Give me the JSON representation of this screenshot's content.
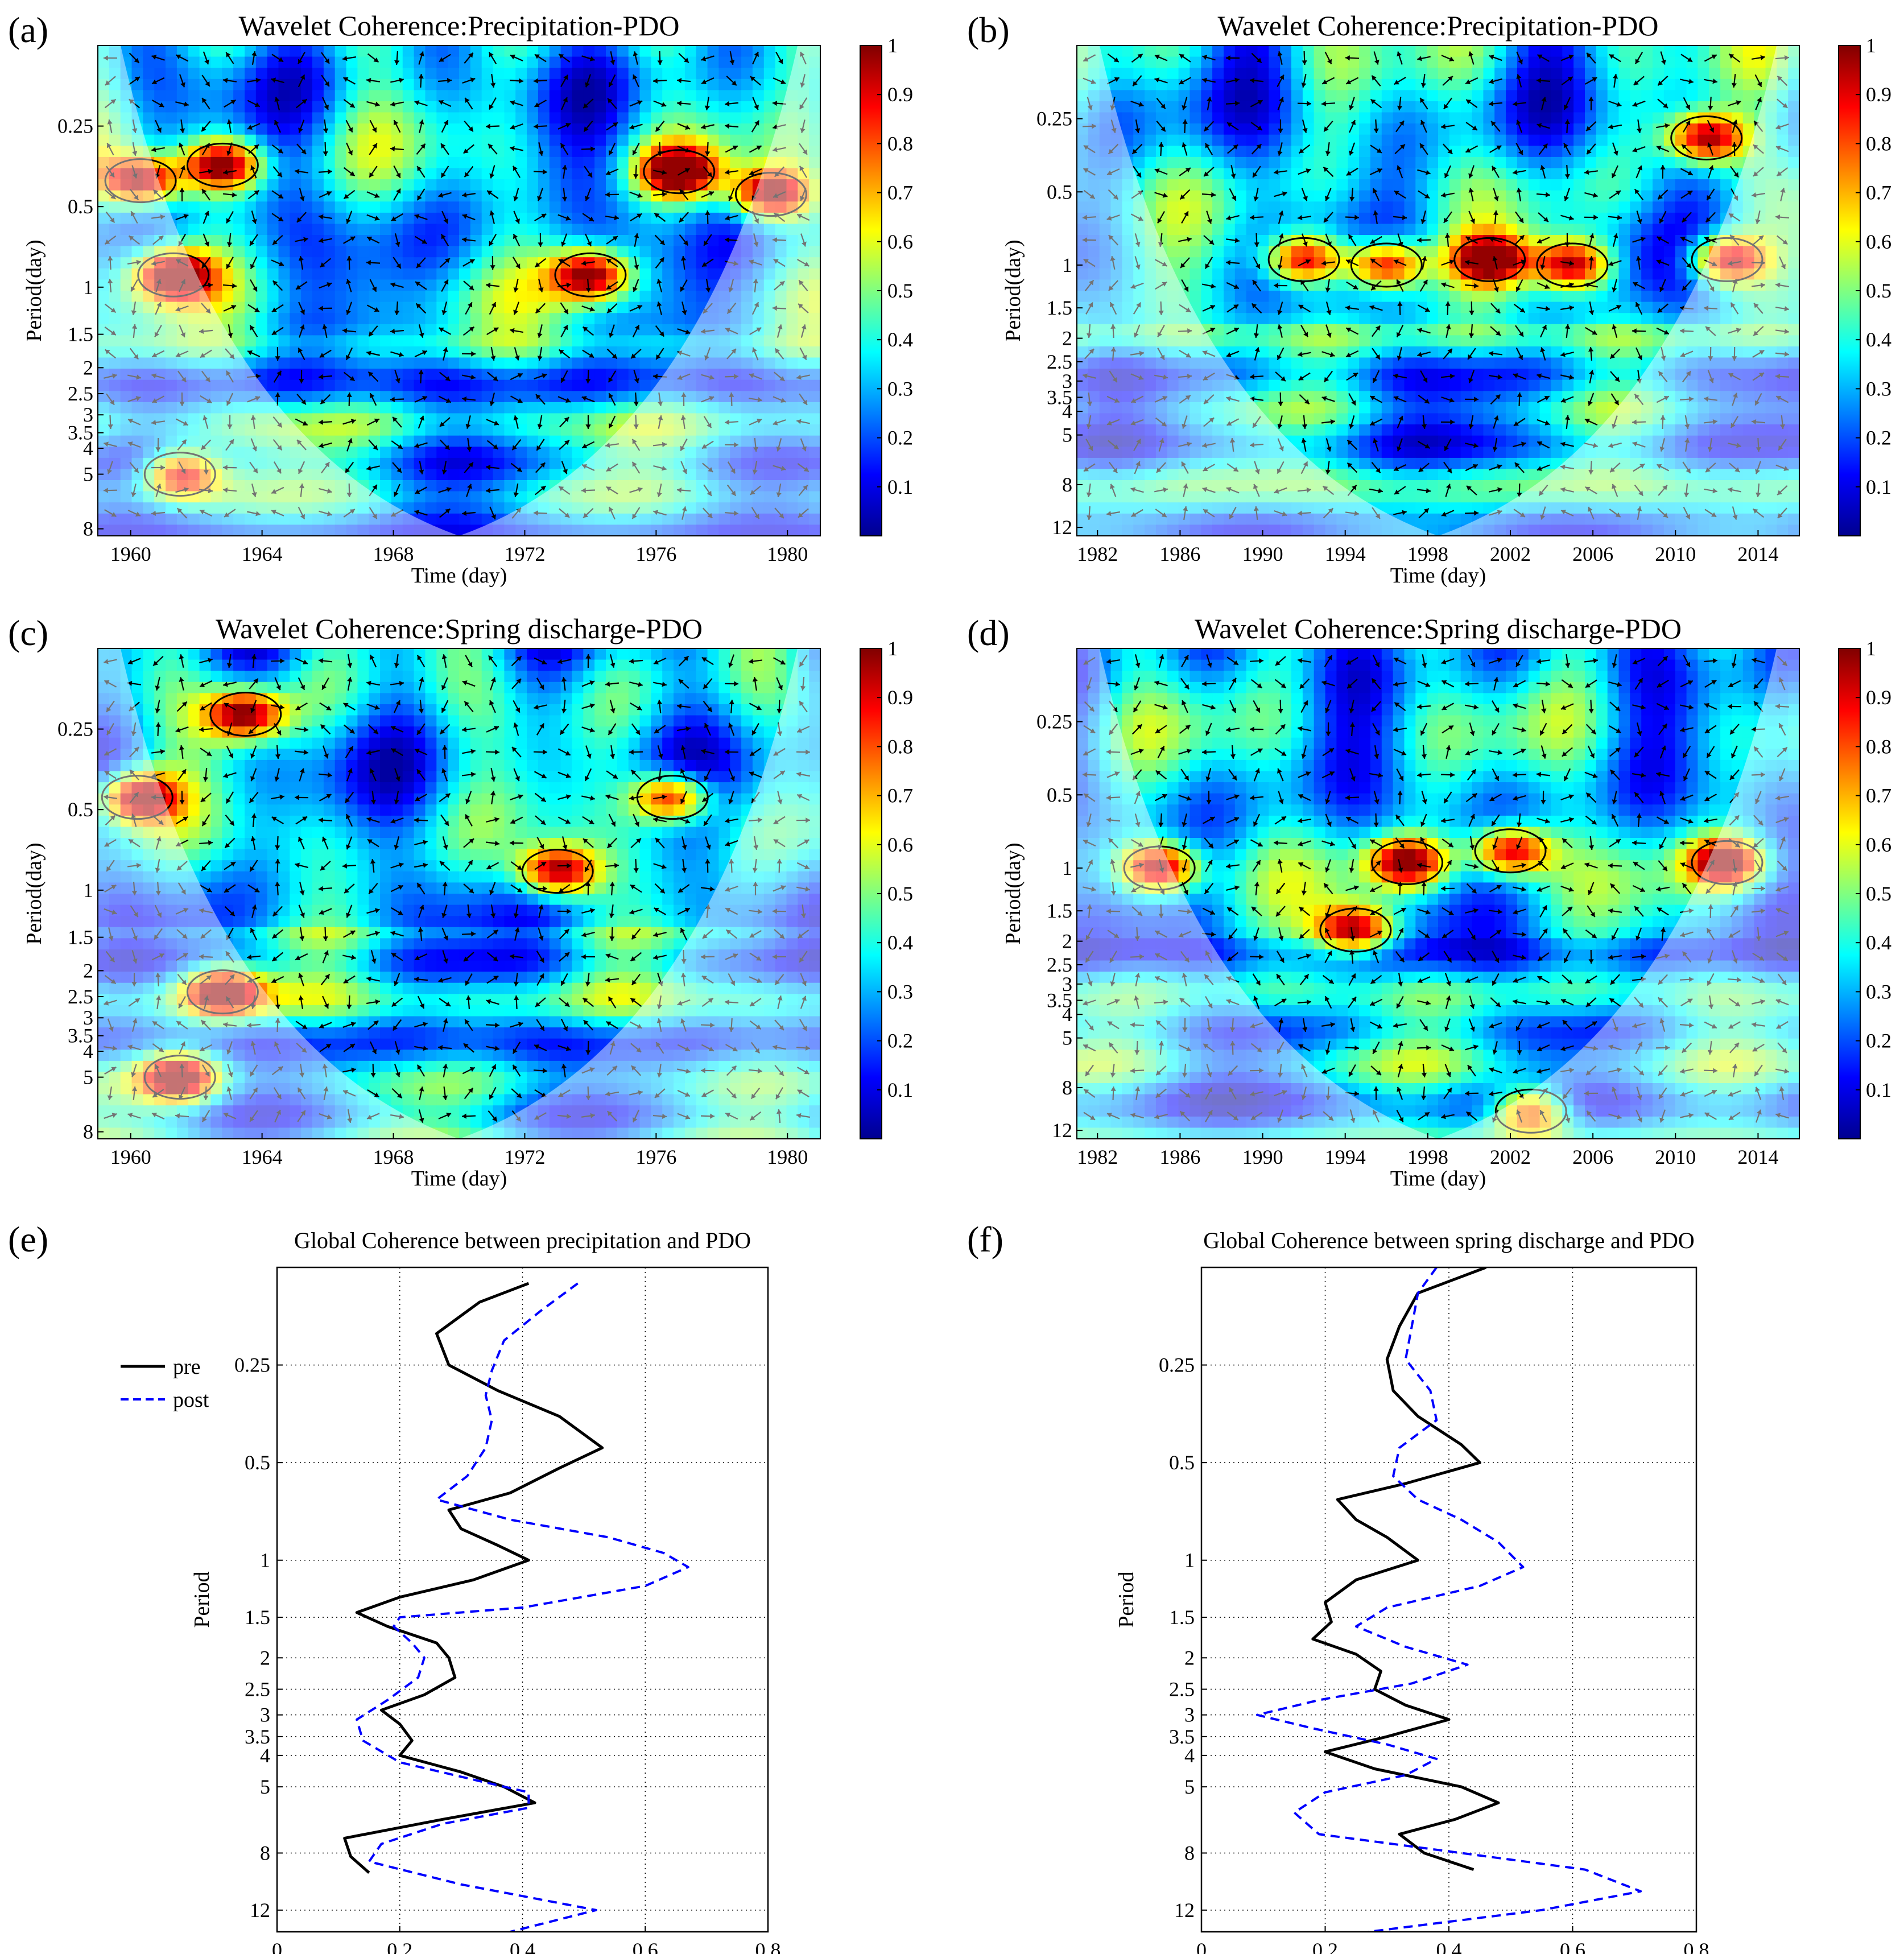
{
  "figure": {
    "colorbar": {
      "ticks": [
        "0.1",
        "0.2",
        "0.3",
        "0.4",
        "0.5",
        "0.6",
        "0.7",
        "0.8",
        "0.9",
        "1"
      ],
      "palette": [
        "#00008f",
        "#0000ff",
        "#0080ff",
        "#00ffff",
        "#80ff80",
        "#ffff00",
        "#ff8000",
        "#ff0000",
        "#800000"
      ]
    },
    "cone_color": "#ffffff",
    "arrow_color": "#000000"
  },
  "chart_data": [
    {
      "panel": "(a)",
      "type": "heatmap",
      "title": "Wavelet Coherence:Precipitation-PDO",
      "xlabel": "Time (day)",
      "ylabel": "Period(day)",
      "xlim": [
        1959,
        1981
      ],
      "ylim": [
        0.125,
        8.5
      ],
      "x_ticks": [
        "1960",
        "1964",
        "1968",
        "1972",
        "1976",
        "1980"
      ],
      "y_ticks": [
        "0.25",
        "0.5",
        "1",
        "1.5",
        "2",
        "2.5",
        "3",
        "3.5",
        "4",
        "5",
        "8"
      ],
      "high_coherence_regions": [
        {
          "x": 1960.3,
          "period": 0.4
        },
        {
          "x": 1962.8,
          "period": 0.35
        },
        {
          "x": 1961.3,
          "period": 0.9
        },
        {
          "x": 1976.7,
          "period": 0.37
        },
        {
          "x": 1974,
          "period": 0.9
        },
        {
          "x": 1979.5,
          "period": 0.45
        },
        {
          "x": 1961.5,
          "period": 5
        }
      ]
    },
    {
      "panel": "(b)",
      "type": "heatmap",
      "title": "Wavelet Coherence:Precipitation-PDO",
      "xlabel": "Time (day)",
      "ylabel": "Period(day)",
      "xlim": [
        1981,
        2016
      ],
      "ylim": [
        0.125,
        13
      ],
      "x_ticks": [
        "1982",
        "1986",
        "1990",
        "1994",
        "1998",
        "2002",
        "2006",
        "2010",
        "2014"
      ],
      "y_ticks": [
        "0.25",
        "0.5",
        "1",
        "1.5",
        "2",
        "2.5",
        "3",
        "3.5",
        "4",
        "5",
        "8",
        "12"
      ],
      "high_coherence_regions": [
        {
          "x": 1992,
          "period": 0.95
        },
        {
          "x": 1996,
          "period": 1.0
        },
        {
          "x": 2001,
          "period": 0.95
        },
        {
          "x": 2005,
          "period": 1.0
        },
        {
          "x": 2012.5,
          "period": 0.95
        },
        {
          "x": 2011.5,
          "period": 0.3
        }
      ]
    },
    {
      "panel": "(c)",
      "type": "heatmap",
      "title": "Wavelet Coherence:Spring discharge-PDO",
      "xlabel": "Time (day)",
      "ylabel": "Period(day)",
      "xlim": [
        1959,
        1981
      ],
      "ylim": [
        0.125,
        8.5
      ],
      "x_ticks": [
        "1960",
        "1964",
        "1968",
        "1972",
        "1976",
        "1980"
      ],
      "y_ticks": [
        "0.25",
        "0.5",
        "1",
        "1.5",
        "2",
        "2.5",
        "3",
        "3.5",
        "4",
        "5",
        "8"
      ],
      "high_coherence_regions": [
        {
          "x": 1973,
          "period": 0.85
        },
        {
          "x": 1976.5,
          "period": 0.45
        },
        {
          "x": 1962.8,
          "period": 2.4
        },
        {
          "x": 1963.5,
          "period": 0.22
        },
        {
          "x": 1960.2,
          "period": 0.45
        },
        {
          "x": 1961.5,
          "period": 5
        }
      ]
    },
    {
      "panel": "(d)",
      "type": "heatmap",
      "title": "Wavelet Coherence:Spring discharge-PDO",
      "xlabel": "Time (day)",
      "ylabel": "Period(day)",
      "xlim": [
        1981,
        2016
      ],
      "ylim": [
        0.125,
        13
      ],
      "x_ticks": [
        "1982",
        "1986",
        "1990",
        "1994",
        "1998",
        "2002",
        "2006",
        "2010",
        "2014"
      ],
      "y_ticks": [
        "0.25",
        "0.5",
        "1",
        "1.5",
        "2",
        "2.5",
        "3",
        "3.5",
        "4",
        "5",
        "8",
        "12"
      ],
      "high_coherence_regions": [
        {
          "x": 1985,
          "period": 1.0
        },
        {
          "x": 1994.5,
          "period": 1.8
        },
        {
          "x": 1997,
          "period": 0.95
        },
        {
          "x": 2002,
          "period": 0.85
        },
        {
          "x": 2012.5,
          "period": 0.95
        },
        {
          "x": 2003,
          "period": 10
        }
      ]
    },
    {
      "panel": "(e)",
      "type": "line",
      "title": "Global Coherence between precipitation and PDO",
      "xlabel": "",
      "ylabel": "Period",
      "xlim": [
        0,
        0.8
      ],
      "ylim": [
        0.125,
        14
      ],
      "x_ticks": [
        "0",
        "0.2",
        "0.4",
        "0.6",
        "0.8"
      ],
      "y_ticks": [
        "0.25",
        "0.5",
        "1",
        "1.5",
        "2",
        "2.5",
        "3",
        "3.5",
        "4",
        "5",
        "8",
        "12"
      ],
      "legend": [
        "pre",
        "post"
      ],
      "series": [
        {
          "name": "pre",
          "style": "solid",
          "color": "#000000",
          "period": [
            0.14,
            0.16,
            0.2,
            0.25,
            0.3,
            0.36,
            0.45,
            0.52,
            0.62,
            0.7,
            0.8,
            0.9,
            1.0,
            1.15,
            1.3,
            1.45,
            1.6,
            1.8,
            2.0,
            2.3,
            2.6,
            2.9,
            3.2,
            3.6,
            4.0,
            4.5,
            5.0,
            5.6,
            6.3,
            7.2,
            8.2,
            9.2
          ],
          "coherence": [
            0.41,
            0.33,
            0.26,
            0.28,
            0.36,
            0.46,
            0.53,
            0.46,
            0.38,
            0.28,
            0.3,
            0.36,
            0.41,
            0.32,
            0.2,
            0.13,
            0.18,
            0.26,
            0.28,
            0.29,
            0.24,
            0.17,
            0.2,
            0.22,
            0.2,
            0.3,
            0.37,
            0.42,
            0.27,
            0.11,
            0.12,
            0.15
          ]
        },
        {
          "name": "post",
          "style": "dashed",
          "color": "#0000ff",
          "period": [
            0.14,
            0.17,
            0.21,
            0.26,
            0.31,
            0.37,
            0.45,
            0.55,
            0.65,
            0.75,
            0.85,
            0.95,
            1.05,
            1.2,
            1.4,
            1.5,
            1.6,
            1.8,
            2.0,
            2.3,
            2.7,
            3.1,
            3.6,
            4.2,
            4.8,
            5.2,
            5.8,
            6.5,
            7.5,
            8.5,
            10,
            12,
            14
          ],
          "coherence": [
            0.49,
            0.43,
            0.37,
            0.35,
            0.34,
            0.35,
            0.34,
            0.31,
            0.26,
            0.38,
            0.54,
            0.63,
            0.67,
            0.6,
            0.4,
            0.2,
            0.19,
            0.22,
            0.24,
            0.23,
            0.18,
            0.13,
            0.14,
            0.2,
            0.33,
            0.41,
            0.41,
            0.27,
            0.17,
            0.15,
            0.3,
            0.52,
            0.38
          ]
        }
      ]
    },
    {
      "panel": "(f)",
      "type": "line",
      "title": "Global Coherence between spring discharge and PDO",
      "xlabel": "",
      "ylabel": "Period",
      "xlim": [
        0,
        0.8
      ],
      "ylim": [
        0.125,
        14
      ],
      "x_ticks": [
        "0",
        "0.2",
        "0.4",
        "0.6",
        "0.8"
      ],
      "y_ticks": [
        "0.25",
        "0.5",
        "1",
        "1.5",
        "2",
        "2.5",
        "3",
        "3.5",
        "4",
        "5",
        "8",
        "12"
      ],
      "series": [
        {
          "name": "pre",
          "style": "solid",
          "color": "#000000",
          "period": [
            0.125,
            0.15,
            0.19,
            0.24,
            0.3,
            0.36,
            0.44,
            0.5,
            0.58,
            0.65,
            0.75,
            0.85,
            1.0,
            1.15,
            1.35,
            1.55,
            1.75,
            1.95,
            2.2,
            2.5,
            2.8,
            3.1,
            3.5,
            3.9,
            4.4,
            5.0,
            5.6,
            6.3,
            7.0,
            8.0,
            9.0
          ],
          "coherence": [
            0.46,
            0.35,
            0.32,
            0.3,
            0.31,
            0.35,
            0.42,
            0.45,
            0.33,
            0.22,
            0.25,
            0.3,
            0.35,
            0.25,
            0.2,
            0.21,
            0.18,
            0.25,
            0.29,
            0.28,
            0.33,
            0.4,
            0.3,
            0.2,
            0.28,
            0.42,
            0.48,
            0.41,
            0.32,
            0.36,
            0.44
          ]
        },
        {
          "name": "post",
          "style": "dashed",
          "color": "#0000ff",
          "period": [
            0.125,
            0.15,
            0.19,
            0.24,
            0.3,
            0.37,
            0.45,
            0.55,
            0.65,
            0.75,
            0.88,
            1.05,
            1.2,
            1.4,
            1.6,
            1.85,
            2.1,
            2.4,
            2.7,
            3.0,
            3.3,
            3.7,
            4.1,
            4.6,
            5.2,
            6.0,
            7.0,
            8.0,
            9.0,
            10.5,
            12,
            14
          ],
          "coherence": [
            0.38,
            0.35,
            0.34,
            0.33,
            0.37,
            0.38,
            0.32,
            0.31,
            0.35,
            0.42,
            0.48,
            0.52,
            0.45,
            0.3,
            0.25,
            0.33,
            0.43,
            0.34,
            0.19,
            0.09,
            0.18,
            0.3,
            0.38,
            0.33,
            0.2,
            0.15,
            0.19,
            0.42,
            0.62,
            0.71,
            0.55,
            0.27
          ]
        }
      ]
    }
  ]
}
